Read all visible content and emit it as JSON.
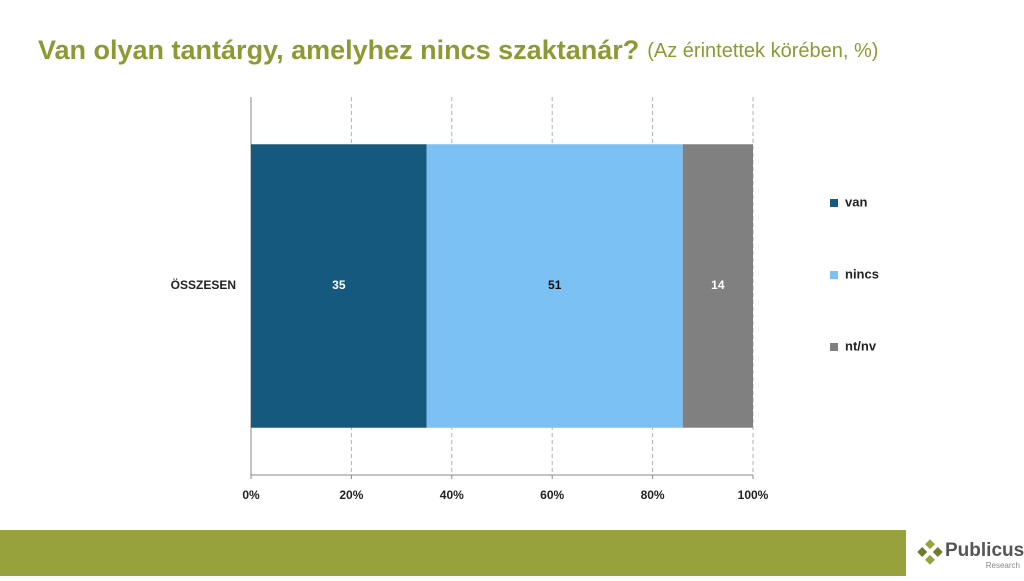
{
  "chart_data": {
    "type": "stacked-bar-horizontal",
    "title": "Van olyan tantárgy, amelyhez nincs szaktanár?",
    "subtitle": "(Az érintettek körében, %)",
    "categories": [
      "ÖSSZESEN"
    ],
    "series": [
      {
        "name": "van",
        "color": "#155a7e",
        "values": [
          35
        ]
      },
      {
        "name": "nincs",
        "color": "#7bc1f4",
        "values": [
          51
        ]
      },
      {
        "name": "nt/nv",
        "color": "#808080",
        "values": [
          14
        ]
      }
    ],
    "xlim": [
      0,
      100
    ],
    "xticks": [
      {
        "value": 0,
        "label": "0%"
      },
      {
        "value": 20,
        "label": "20%"
      },
      {
        "value": 40,
        "label": "40%"
      },
      {
        "value": 60,
        "label": "60%"
      },
      {
        "value": 80,
        "label": "80%"
      },
      {
        "value": 100,
        "label": "100%"
      }
    ],
    "grid": true,
    "legend": "right"
  },
  "logo": {
    "name": "Publicus",
    "tagline": "Research"
  }
}
